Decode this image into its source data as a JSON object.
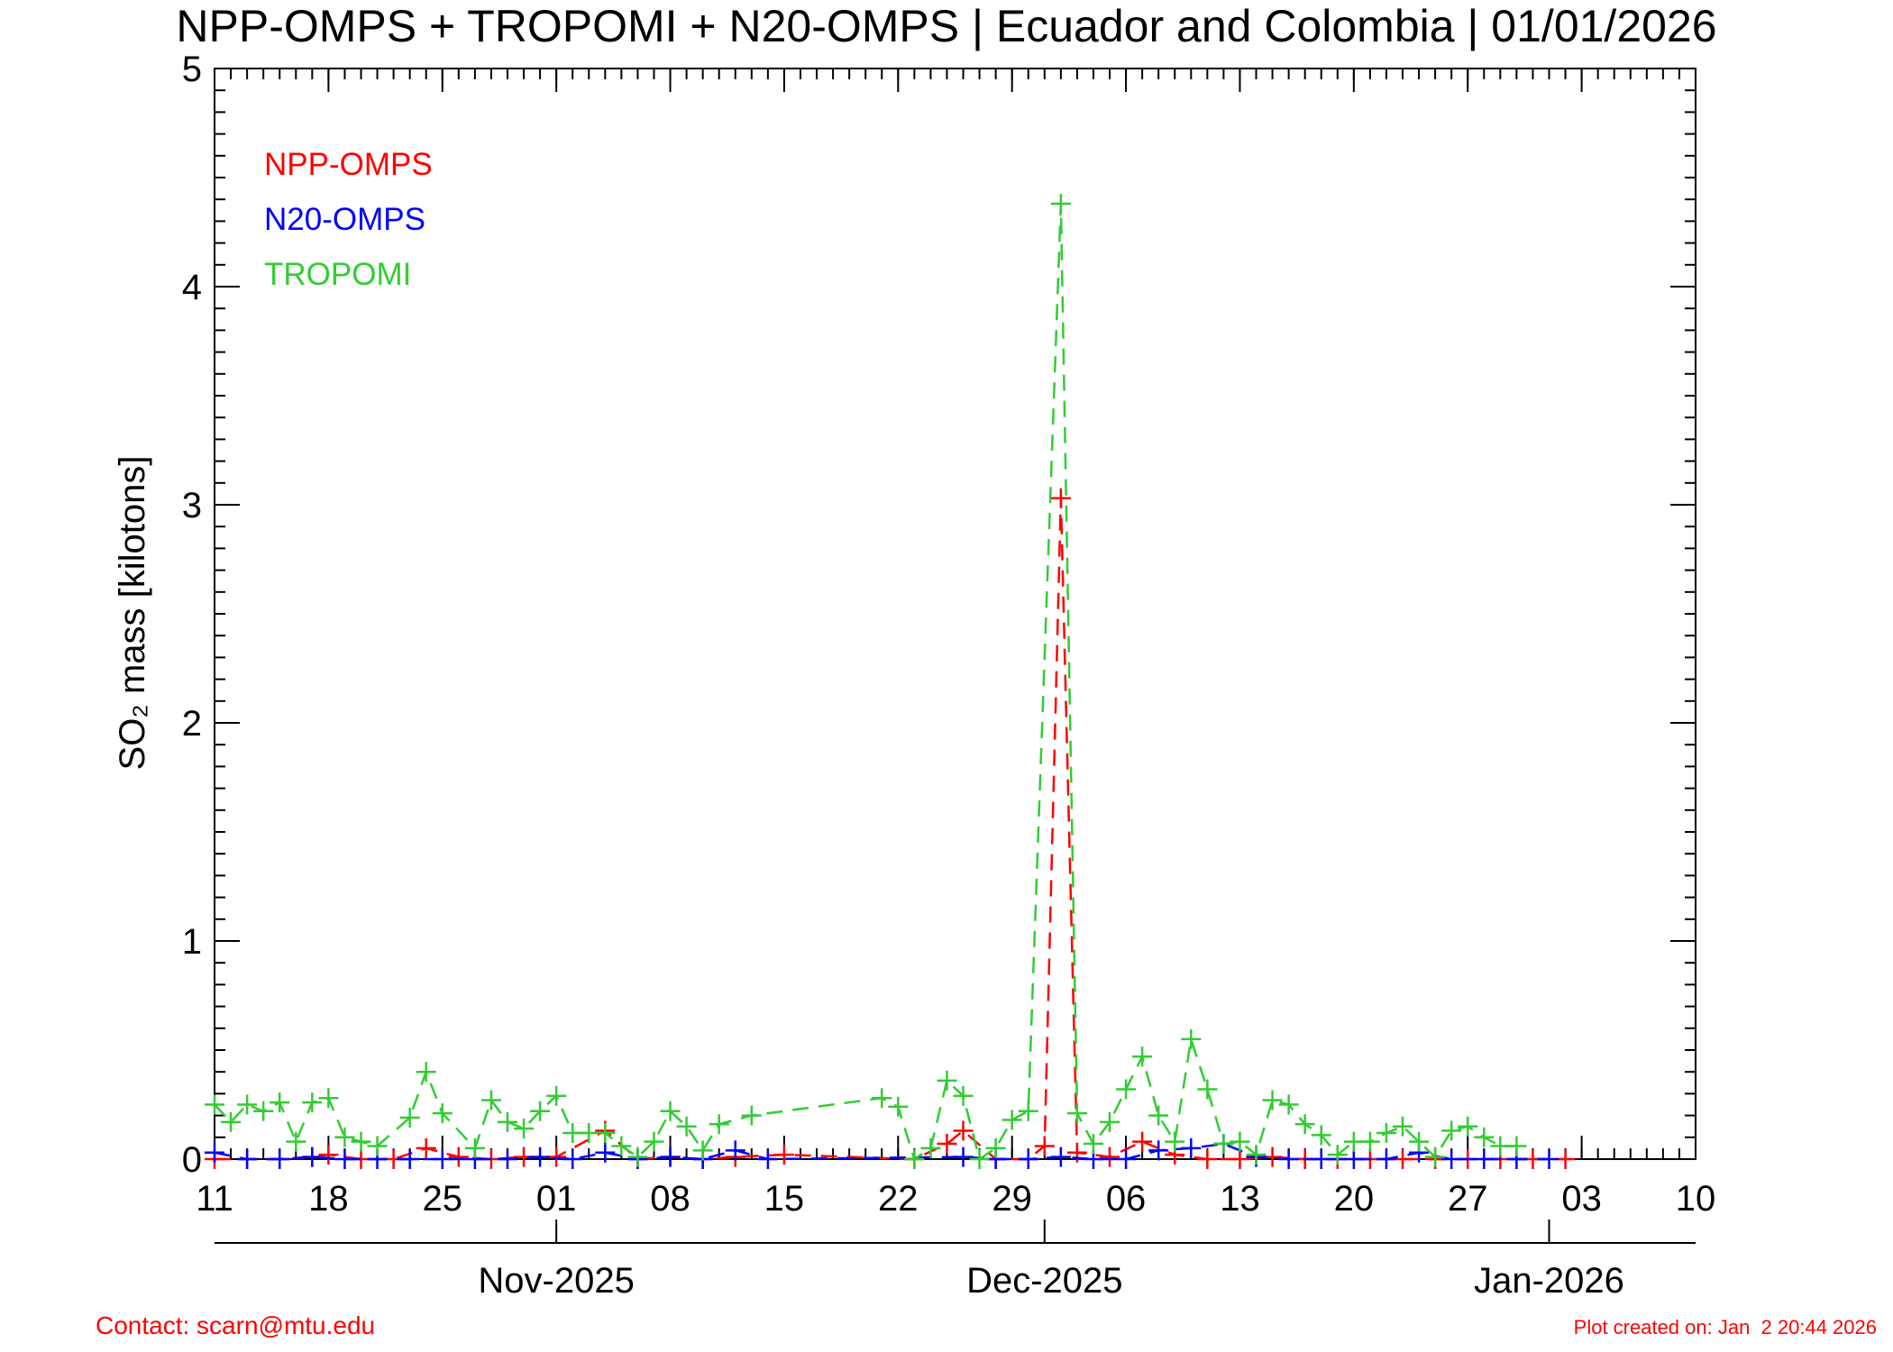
{
  "chart_data": {
    "type": "line",
    "title": "NPP-OMPS + TROPOMI + N20-OMPS | Ecuador and Colombia | 01/01/2026",
    "y_label": "SO₂ mass [kilotons]",
    "ylim": [
      0,
      5
    ],
    "yticks": [
      0,
      1,
      2,
      3,
      4,
      5
    ],
    "xlim": [
      "2025-10-11",
      "2026-01-10"
    ],
    "xticks": [
      {
        "value": "2025-10-11",
        "label": "11"
      },
      {
        "value": "2025-10-18",
        "label": "18"
      },
      {
        "value": "2025-10-25",
        "label": "25"
      },
      {
        "value": "2025-11-01",
        "label": "01"
      },
      {
        "value": "2025-11-08",
        "label": "08"
      },
      {
        "value": "2025-11-15",
        "label": "15"
      },
      {
        "value": "2025-11-22",
        "label": "22"
      },
      {
        "value": "2025-11-29",
        "label": "29"
      },
      {
        "value": "2025-12-06",
        "label": "06"
      },
      {
        "value": "2025-12-13",
        "label": "13"
      },
      {
        "value": "2025-12-20",
        "label": "20"
      },
      {
        "value": "2025-12-27",
        "label": "27"
      },
      {
        "value": "2026-01-03",
        "label": "03"
      },
      {
        "value": "2026-01-10",
        "label": "10"
      }
    ],
    "month_ticks": [
      {
        "value": "2025-11-01",
        "label": "Nov-2025"
      },
      {
        "value": "2025-12-01",
        "label": "Dec-2025"
      },
      {
        "value": "2026-01-01",
        "label": "Jan-2026"
      }
    ],
    "series": [
      {
        "name": "NPP-OMPS",
        "color": "#ff0000",
        "x": [
          "2025-10-11",
          "2025-10-13",
          "2025-10-15",
          "2025-10-17",
          "2025-10-18",
          "2025-10-20",
          "2025-10-22",
          "2025-10-24",
          "2025-10-26",
          "2025-10-28",
          "2025-10-30",
          "2025-11-01",
          "2025-11-04",
          "2025-11-06",
          "2025-11-08",
          "2025-11-10",
          "2025-11-12",
          "2025-11-15",
          "2025-11-23",
          "2025-11-25",
          "2025-11-26",
          "2025-11-28",
          "2025-11-30",
          "2025-12-01",
          "2025-12-02",
          "2025-12-03",
          "2025-12-05",
          "2025-12-07",
          "2025-12-09",
          "2025-12-11",
          "2025-12-13",
          "2025-12-15",
          "2025-12-17",
          "2025-12-19",
          "2025-12-21",
          "2025-12-23",
          "2025-12-25",
          "2025-12-27",
          "2025-12-29",
          "2025-12-31",
          "2026-01-02"
        ],
        "values": [
          0.0,
          0.0,
          0.0,
          0.01,
          0.02,
          0.0,
          0.0,
          0.05,
          0.01,
          0.0,
          0.01,
          0.01,
          0.13,
          0.0,
          0.01,
          0.0,
          0.01,
          0.02,
          0.0,
          0.07,
          0.13,
          0.0,
          0.0,
          0.06,
          3.03,
          0.03,
          0.01,
          0.08,
          0.02,
          0.0,
          0.0,
          0.01,
          0.0,
          0.0,
          0.0,
          0.0,
          0.0,
          0.0,
          0.0,
          0.0,
          0.0
        ]
      },
      {
        "name": "N20-OMPS",
        "color": "#0000ff",
        "x": [
          "2025-10-11",
          "2025-10-13",
          "2025-10-15",
          "2025-10-17",
          "2025-10-19",
          "2025-10-21",
          "2025-10-23",
          "2025-10-25",
          "2025-10-27",
          "2025-10-29",
          "2025-10-31",
          "2025-11-02",
          "2025-11-04",
          "2025-11-06",
          "2025-11-08",
          "2025-11-10",
          "2025-11-12",
          "2025-11-14",
          "2025-11-26",
          "2025-11-28",
          "2025-11-30",
          "2025-12-02",
          "2025-12-04",
          "2025-12-06",
          "2025-12-08",
          "2025-12-10",
          "2025-12-12",
          "2025-12-14",
          "2025-12-16",
          "2025-12-18",
          "2025-12-20",
          "2025-12-22",
          "2025-12-24",
          "2025-12-26",
          "2025-12-28",
          "2025-12-30",
          "2026-01-01"
        ],
        "values": [
          0.03,
          0.0,
          0.0,
          0.01,
          0.0,
          0.0,
          0.0,
          0.0,
          0.0,
          0.0,
          0.01,
          0.0,
          0.03,
          0.0,
          0.01,
          0.0,
          0.04,
          0.0,
          0.01,
          0.0,
          0.0,
          0.01,
          0.0,
          0.0,
          0.04,
          0.05,
          0.07,
          0.01,
          0.0,
          0.0,
          0.0,
          0.0,
          0.03,
          0.0,
          0.0,
          0.0,
          0.0
        ]
      },
      {
        "name": "TROPOMI",
        "color": "#33cc33",
        "x": [
          "2025-10-11",
          "2025-10-12",
          "2025-10-13",
          "2025-10-14",
          "2025-10-15",
          "2025-10-16",
          "2025-10-17",
          "2025-10-18",
          "2025-10-19",
          "2025-10-20",
          "2025-10-21",
          "2025-10-23",
          "2025-10-24",
          "2025-10-25",
          "2025-10-27",
          "2025-10-28",
          "2025-10-29",
          "2025-10-30",
          "2025-10-31",
          "2025-11-01",
          "2025-11-02",
          "2025-11-03",
          "2025-11-04",
          "2025-11-05",
          "2025-11-06",
          "2025-11-07",
          "2025-11-08",
          "2025-11-09",
          "2025-11-10",
          "2025-11-11",
          "2025-11-13",
          "2025-11-21",
          "2025-11-22",
          "2025-11-23",
          "2025-11-24",
          "2025-11-25",
          "2025-11-26",
          "2025-11-27",
          "2025-11-28",
          "2025-11-29",
          "2025-11-30",
          "2025-12-02",
          "2025-12-03",
          "2025-12-04",
          "2025-12-05",
          "2025-12-06",
          "2025-12-07",
          "2025-12-08",
          "2025-12-09",
          "2025-12-10",
          "2025-12-11",
          "2025-12-12",
          "2025-12-13",
          "2025-12-14",
          "2025-12-15",
          "2025-12-16",
          "2025-12-17",
          "2025-12-18",
          "2025-12-19",
          "2025-12-20",
          "2025-12-21",
          "2025-12-22",
          "2025-12-23",
          "2025-12-24",
          "2025-12-25",
          "2025-12-26",
          "2025-12-27",
          "2025-12-28",
          "2025-12-29",
          "2025-12-30"
        ],
        "values": [
          0.25,
          0.17,
          0.25,
          0.22,
          0.26,
          0.08,
          0.26,
          0.28,
          0.1,
          0.08,
          0.06,
          0.19,
          0.4,
          0.21,
          0.05,
          0.27,
          0.17,
          0.14,
          0.22,
          0.29,
          0.12,
          0.12,
          0.12,
          0.06,
          0.01,
          0.08,
          0.22,
          0.15,
          0.04,
          0.16,
          0.2,
          0.28,
          0.24,
          0.0,
          0.05,
          0.36,
          0.29,
          0.0,
          0.05,
          0.18,
          0.22,
          4.38,
          0.21,
          0.07,
          0.17,
          0.32,
          0.47,
          0.2,
          0.08,
          0.55,
          0.32,
          0.07,
          0.08,
          0.02,
          0.27,
          0.25,
          0.16,
          0.11,
          0.02,
          0.08,
          0.08,
          0.12,
          0.15,
          0.08,
          0.01,
          0.13,
          0.15,
          0.1,
          0.06,
          0.06
        ]
      }
    ],
    "footer_left": "Contact: scarn@mtu.edu",
    "footer_right": "Plot created on: Jan  2 20:44 2026"
  }
}
